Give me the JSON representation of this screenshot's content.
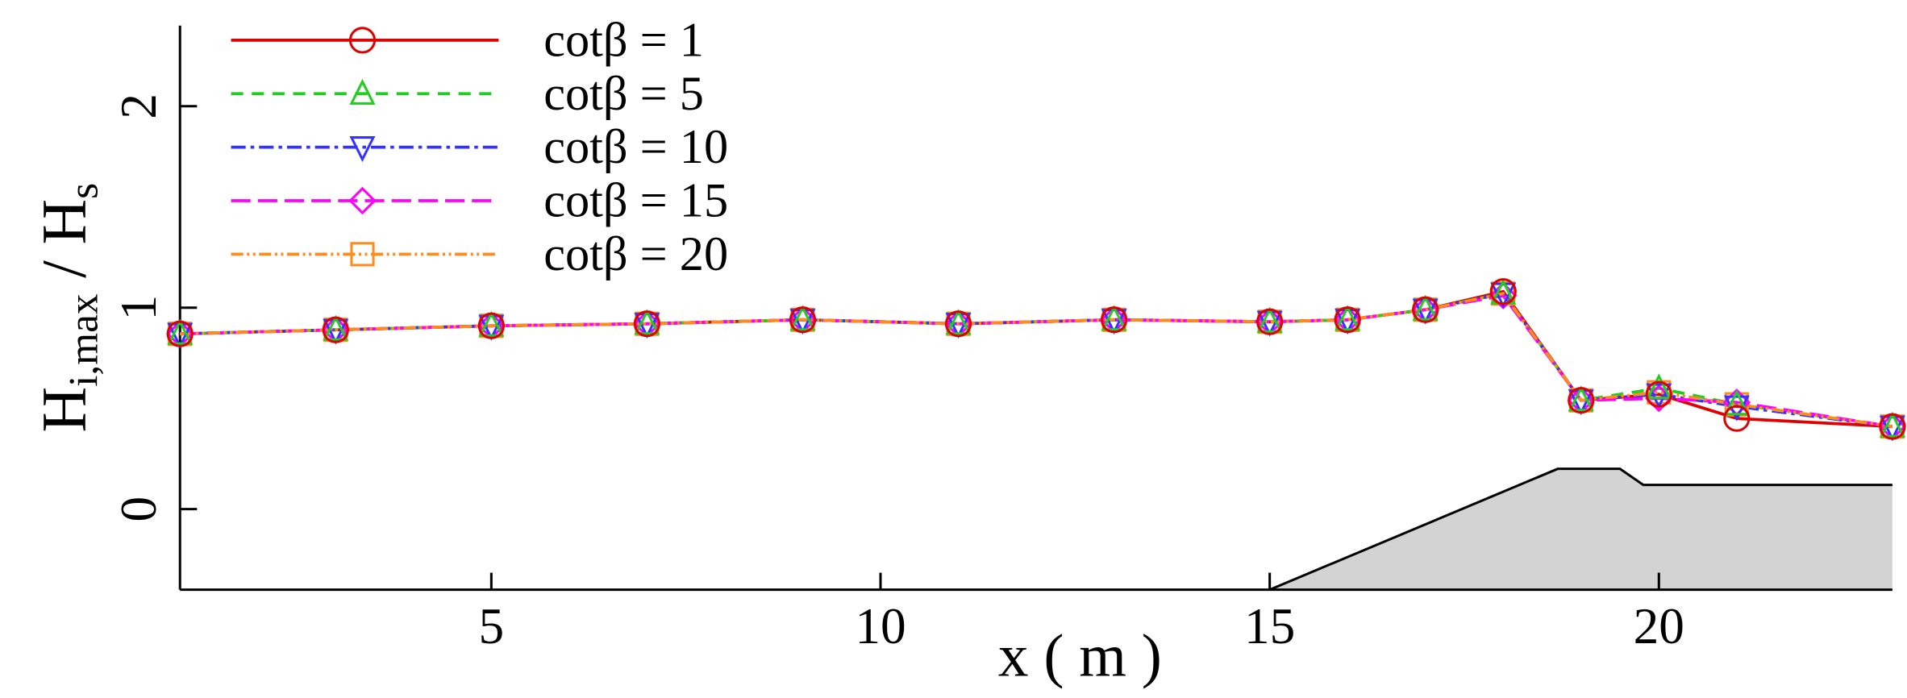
{
  "chart_data": {
    "type": "line",
    "xlabel": "x ( m )",
    "ylabel": [
      "H",
      "i,max",
      " / H",
      "s"
    ],
    "x": [
      1,
      3,
      5,
      7,
      9,
      11,
      13,
      15,
      16,
      17,
      18,
      19,
      20,
      21,
      23
    ],
    "series": [
      {
        "name": "cotβ = 1",
        "color": "#e00000",
        "marker": "circle",
        "dash": "none",
        "values": [
          0.87,
          0.89,
          0.91,
          0.92,
          0.94,
          0.92,
          0.94,
          0.93,
          0.94,
          0.99,
          1.08,
          0.54,
          0.57,
          0.45,
          0.41
        ]
      },
      {
        "name": "cotβ = 5",
        "color": "#22cc22",
        "marker": "triangle",
        "dash": "10 7",
        "values": [
          0.87,
          0.89,
          0.91,
          0.92,
          0.94,
          0.92,
          0.94,
          0.93,
          0.94,
          0.99,
          1.07,
          0.54,
          0.6,
          0.52,
          0.41
        ]
      },
      {
        "name": "cotβ = 10",
        "color": "#3333ff",
        "marker": "triangle-down",
        "dash": "12 4 3 4",
        "values": [
          0.87,
          0.89,
          0.91,
          0.92,
          0.94,
          0.92,
          0.94,
          0.93,
          0.94,
          0.99,
          1.07,
          0.54,
          0.57,
          0.51,
          0.41
        ]
      },
      {
        "name": "cotβ = 15",
        "color": "#ff00ff",
        "marker": "diamond",
        "dash": "16 6",
        "values": [
          0.87,
          0.89,
          0.91,
          0.92,
          0.94,
          0.92,
          0.94,
          0.93,
          0.94,
          0.99,
          1.06,
          0.54,
          0.55,
          0.53,
          0.41
        ]
      },
      {
        "name": "cotβ = 20",
        "color": "#ff8c1a",
        "marker": "square",
        "dash": "10 3 2 3 2 3",
        "values": [
          0.87,
          0.89,
          0.91,
          0.92,
          0.94,
          0.92,
          0.94,
          0.93,
          0.94,
          0.99,
          1.07,
          0.54,
          0.58,
          0.52,
          0.41
        ]
      }
    ],
    "profile": {
      "x": [
        15,
        18.7,
        19.5,
        19.8,
        23
      ],
      "y": [
        -0.4,
        0.2,
        0.2,
        0.12,
        0.12
      ],
      "color": "#d3d3d3"
    },
    "xlim": [
      1,
      23
    ],
    "ylim": [
      -0.4,
      2.4
    ],
    "xticks": [
      5,
      10,
      15,
      20
    ],
    "yticks": [
      0,
      1,
      2
    ],
    "legend": "top-left"
  }
}
